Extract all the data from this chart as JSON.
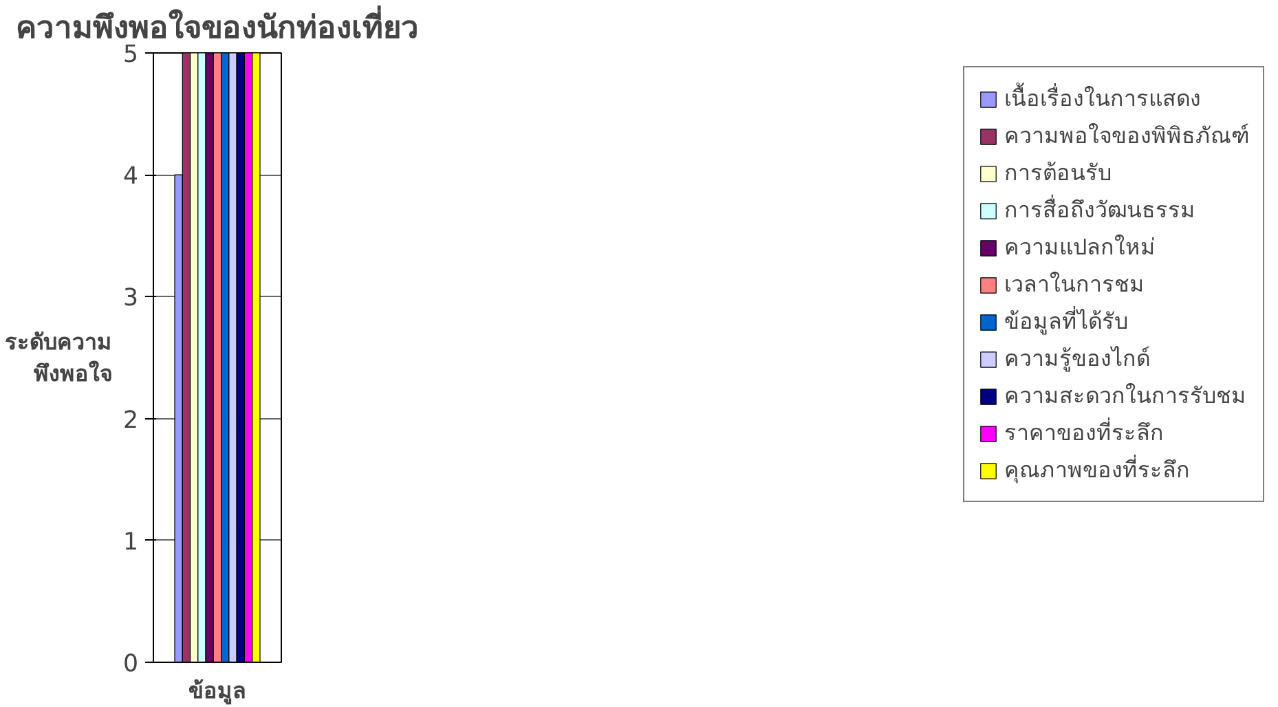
{
  "chart_data": {
    "type": "bar",
    "title": "ความพึงพอใจของนักท่องเที่ยว",
    "xlabel": "ข้อมูล",
    "ylabel": "ระดับความ\nพึงพอใจ",
    "categories": [
      null
    ],
    "series": [
      {
        "name": "เนื้อเรื่องในการแสดง",
        "color": "#9999ff",
        "values": [
          4
        ]
      },
      {
        "name": "ความพอใจของพิพิธภัณฑ์",
        "color": "#993366",
        "values": [
          5
        ]
      },
      {
        "name": "การต้อนรับ",
        "color": "#ffffcc",
        "values": [
          5
        ]
      },
      {
        "name": "การสื่อถึงวัฒนธรรม",
        "color": "#ccffff",
        "values": [
          5
        ]
      },
      {
        "name": "ความแปลกใหม่",
        "color": "#660066",
        "values": [
          5
        ]
      },
      {
        "name": "เวลาในการชม",
        "color": "#ff8080",
        "values": [
          5
        ]
      },
      {
        "name": "ข้อมูลที่ได้รับ",
        "color": "#0066cc",
        "values": [
          5
        ]
      },
      {
        "name": "ความรู้ของไกด์",
        "color": "#ccccff",
        "values": [
          5
        ]
      },
      {
        "name": "ความสะดวกในการรับชม",
        "color": "#000080",
        "values": [
          5
        ]
      },
      {
        "name": "ราคาของที่ระลึก",
        "color": "#ff00ff",
        "values": [
          5
        ]
      },
      {
        "name": "คุณภาพของที่ระลึก",
        "color": "#ffff00",
        "values": [
          5
        ]
      }
    ],
    "ylim": [
      0,
      5
    ],
    "yticks": [
      0,
      1,
      2,
      3,
      4,
      5
    ],
    "grid": "y",
    "legend": "right"
  }
}
